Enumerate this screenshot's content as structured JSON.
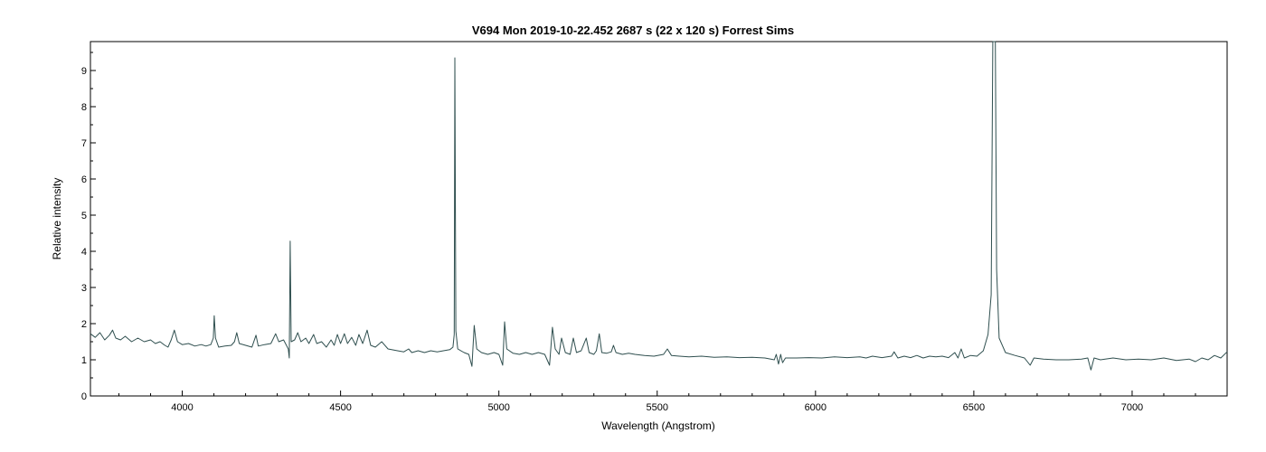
{
  "chart_data": {
    "type": "line",
    "title": "V694 Mon   2019-10-22.452   2687 s (22 x 120 s)   Forrest Sims",
    "xlabel": "Wavelength (Angstrom)",
    "ylabel": "Relative intensity",
    "xlim": [
      3710,
      7300
    ],
    "ylim": [
      0,
      9.8
    ],
    "grid": false,
    "colors": {
      "line": "#2f4f4f",
      "frame": "#000000"
    },
    "x_ticks": [
      4000,
      4500,
      5000,
      5500,
      6000,
      6500,
      7000
    ],
    "y_ticks": [
      0,
      1,
      2,
      3,
      4,
      5,
      6,
      7,
      8,
      9
    ],
    "series": [
      {
        "color": "#2f4f4f",
        "points": [
          [
            3710,
            1.72
          ],
          [
            3725,
            1.62
          ],
          [
            3740,
            1.75
          ],
          [
            3755,
            1.55
          ],
          [
            3770,
            1.68
          ],
          [
            3780,
            1.82
          ],
          [
            3790,
            1.6
          ],
          [
            3805,
            1.55
          ],
          [
            3820,
            1.65
          ],
          [
            3840,
            1.5
          ],
          [
            3860,
            1.6
          ],
          [
            3880,
            1.5
          ],
          [
            3900,
            1.55
          ],
          [
            3915,
            1.45
          ],
          [
            3930,
            1.5
          ],
          [
            3945,
            1.4
          ],
          [
            3955,
            1.35
          ],
          [
            3965,
            1.55
          ],
          [
            3975,
            1.82
          ],
          [
            3985,
            1.5
          ],
          [
            4000,
            1.42
          ],
          [
            4020,
            1.45
          ],
          [
            4040,
            1.38
          ],
          [
            4060,
            1.42
          ],
          [
            4075,
            1.38
          ],
          [
            4090,
            1.42
          ],
          [
            4098,
            1.6
          ],
          [
            4101,
            2.22
          ],
          [
            4105,
            1.6
          ],
          [
            4115,
            1.35
          ],
          [
            4135,
            1.38
          ],
          [
            4155,
            1.4
          ],
          [
            4165,
            1.5
          ],
          [
            4172,
            1.75
          ],
          [
            4180,
            1.45
          ],
          [
            4200,
            1.4
          ],
          [
            4220,
            1.35
          ],
          [
            4233,
            1.68
          ],
          [
            4240,
            1.38
          ],
          [
            4260,
            1.42
          ],
          [
            4280,
            1.45
          ],
          [
            4295,
            1.72
          ],
          [
            4305,
            1.5
          ],
          [
            4320,
            1.55
          ],
          [
            4335,
            1.3
          ],
          [
            4338,
            1.05
          ],
          [
            4341,
            4.28
          ],
          [
            4344,
            1.5
          ],
          [
            4355,
            1.55
          ],
          [
            4365,
            1.75
          ],
          [
            4375,
            1.5
          ],
          [
            4390,
            1.6
          ],
          [
            4400,
            1.45
          ],
          [
            4415,
            1.7
          ],
          [
            4425,
            1.45
          ],
          [
            4440,
            1.5
          ],
          [
            4455,
            1.35
          ],
          [
            4470,
            1.55
          ],
          [
            4480,
            1.4
          ],
          [
            4490,
            1.7
          ],
          [
            4500,
            1.45
          ],
          [
            4512,
            1.72
          ],
          [
            4522,
            1.45
          ],
          [
            4535,
            1.62
          ],
          [
            4548,
            1.4
          ],
          [
            4558,
            1.7
          ],
          [
            4570,
            1.45
          ],
          [
            4584,
            1.82
          ],
          [
            4595,
            1.4
          ],
          [
            4610,
            1.35
          ],
          [
            4630,
            1.5
          ],
          [
            4650,
            1.3
          ],
          [
            4680,
            1.25
          ],
          [
            4700,
            1.22
          ],
          [
            4715,
            1.3
          ],
          [
            4725,
            1.2
          ],
          [
            4745,
            1.25
          ],
          [
            4765,
            1.2
          ],
          [
            4785,
            1.25
          ],
          [
            4805,
            1.22
          ],
          [
            4825,
            1.25
          ],
          [
            4845,
            1.28
          ],
          [
            4855,
            1.35
          ],
          [
            4859,
            1.7
          ],
          [
            4861,
            9.35
          ],
          [
            4864,
            1.8
          ],
          [
            4870,
            1.3
          ],
          [
            4890,
            1.2
          ],
          [
            4905,
            1.15
          ],
          [
            4915,
            0.82
          ],
          [
            4922,
            1.95
          ],
          [
            4930,
            1.3
          ],
          [
            4945,
            1.2
          ],
          [
            4965,
            1.15
          ],
          [
            4985,
            1.2
          ],
          [
            5000,
            1.15
          ],
          [
            5012,
            0.85
          ],
          [
            5018,
            2.05
          ],
          [
            5025,
            1.3
          ],
          [
            5045,
            1.18
          ],
          [
            5065,
            1.15
          ],
          [
            5085,
            1.2
          ],
          [
            5105,
            1.15
          ],
          [
            5125,
            1.2
          ],
          [
            5145,
            1.15
          ],
          [
            5160,
            0.85
          ],
          [
            5169,
            1.9
          ],
          [
            5178,
            1.3
          ],
          [
            5190,
            1.15
          ],
          [
            5198,
            1.6
          ],
          [
            5210,
            1.2
          ],
          [
            5225,
            1.15
          ],
          [
            5235,
            1.6
          ],
          [
            5245,
            1.2
          ],
          [
            5260,
            1.25
          ],
          [
            5276,
            1.6
          ],
          [
            5285,
            1.2
          ],
          [
            5300,
            1.15
          ],
          [
            5308,
            1.25
          ],
          [
            5317,
            1.72
          ],
          [
            5325,
            1.2
          ],
          [
            5340,
            1.18
          ],
          [
            5355,
            1.22
          ],
          [
            5362,
            1.4
          ],
          [
            5370,
            1.2
          ],
          [
            5390,
            1.15
          ],
          [
            5410,
            1.18
          ],
          [
            5430,
            1.15
          ],
          [
            5460,
            1.12
          ],
          [
            5490,
            1.1
          ],
          [
            5520,
            1.15
          ],
          [
            5532,
            1.3
          ],
          [
            5545,
            1.12
          ],
          [
            5570,
            1.1
          ],
          [
            5600,
            1.08
          ],
          [
            5640,
            1.1
          ],
          [
            5680,
            1.07
          ],
          [
            5720,
            1.08
          ],
          [
            5760,
            1.06
          ],
          [
            5800,
            1.07
          ],
          [
            5840,
            1.05
          ],
          [
            5870,
            1.0
          ],
          [
            5876,
            1.15
          ],
          [
            5883,
            0.88
          ],
          [
            5890,
            1.15
          ],
          [
            5896,
            0.92
          ],
          [
            5905,
            1.05
          ],
          [
            5940,
            1.05
          ],
          [
            5980,
            1.06
          ],
          [
            6020,
            1.05
          ],
          [
            6060,
            1.08
          ],
          [
            6100,
            1.06
          ],
          [
            6140,
            1.08
          ],
          [
            6160,
            1.05
          ],
          [
            6180,
            1.1
          ],
          [
            6210,
            1.06
          ],
          [
            6240,
            1.1
          ],
          [
            6248,
            1.22
          ],
          [
            6260,
            1.05
          ],
          [
            6280,
            1.1
          ],
          [
            6300,
            1.06
          ],
          [
            6320,
            1.12
          ],
          [
            6340,
            1.05
          ],
          [
            6360,
            1.1
          ],
          [
            6380,
            1.08
          ],
          [
            6400,
            1.1
          ],
          [
            6420,
            1.06
          ],
          [
            6440,
            1.2
          ],
          [
            6450,
            1.05
          ],
          [
            6460,
            1.3
          ],
          [
            6470,
            1.05
          ],
          [
            6490,
            1.12
          ],
          [
            6510,
            1.1
          ],
          [
            6530,
            1.25
          ],
          [
            6545,
            1.7
          ],
          [
            6555,
            2.8
          ],
          [
            6560,
            9.8
          ],
          [
            6568,
            9.8
          ],
          [
            6572,
            3.5
          ],
          [
            6580,
            1.6
          ],
          [
            6600,
            1.2
          ],
          [
            6630,
            1.12
          ],
          [
            6660,
            1.05
          ],
          [
            6678,
            0.85
          ],
          [
            6690,
            1.05
          ],
          [
            6720,
            1.02
          ],
          [
            6760,
            1.0
          ],
          [
            6800,
            1.0
          ],
          [
            6840,
            1.02
          ],
          [
            6860,
            1.05
          ],
          [
            6870,
            0.72
          ],
          [
            6880,
            1.05
          ],
          [
            6900,
            1.0
          ],
          [
            6940,
            1.05
          ],
          [
            6980,
            1.0
          ],
          [
            7020,
            1.02
          ],
          [
            7060,
            1.0
          ],
          [
            7100,
            1.05
          ],
          [
            7140,
            0.98
          ],
          [
            7180,
            1.02
          ],
          [
            7200,
            0.95
          ],
          [
            7220,
            1.05
          ],
          [
            7240,
            1.0
          ],
          [
            7260,
            1.12
          ],
          [
            7280,
            1.05
          ],
          [
            7300,
            1.22
          ]
        ]
      }
    ]
  }
}
